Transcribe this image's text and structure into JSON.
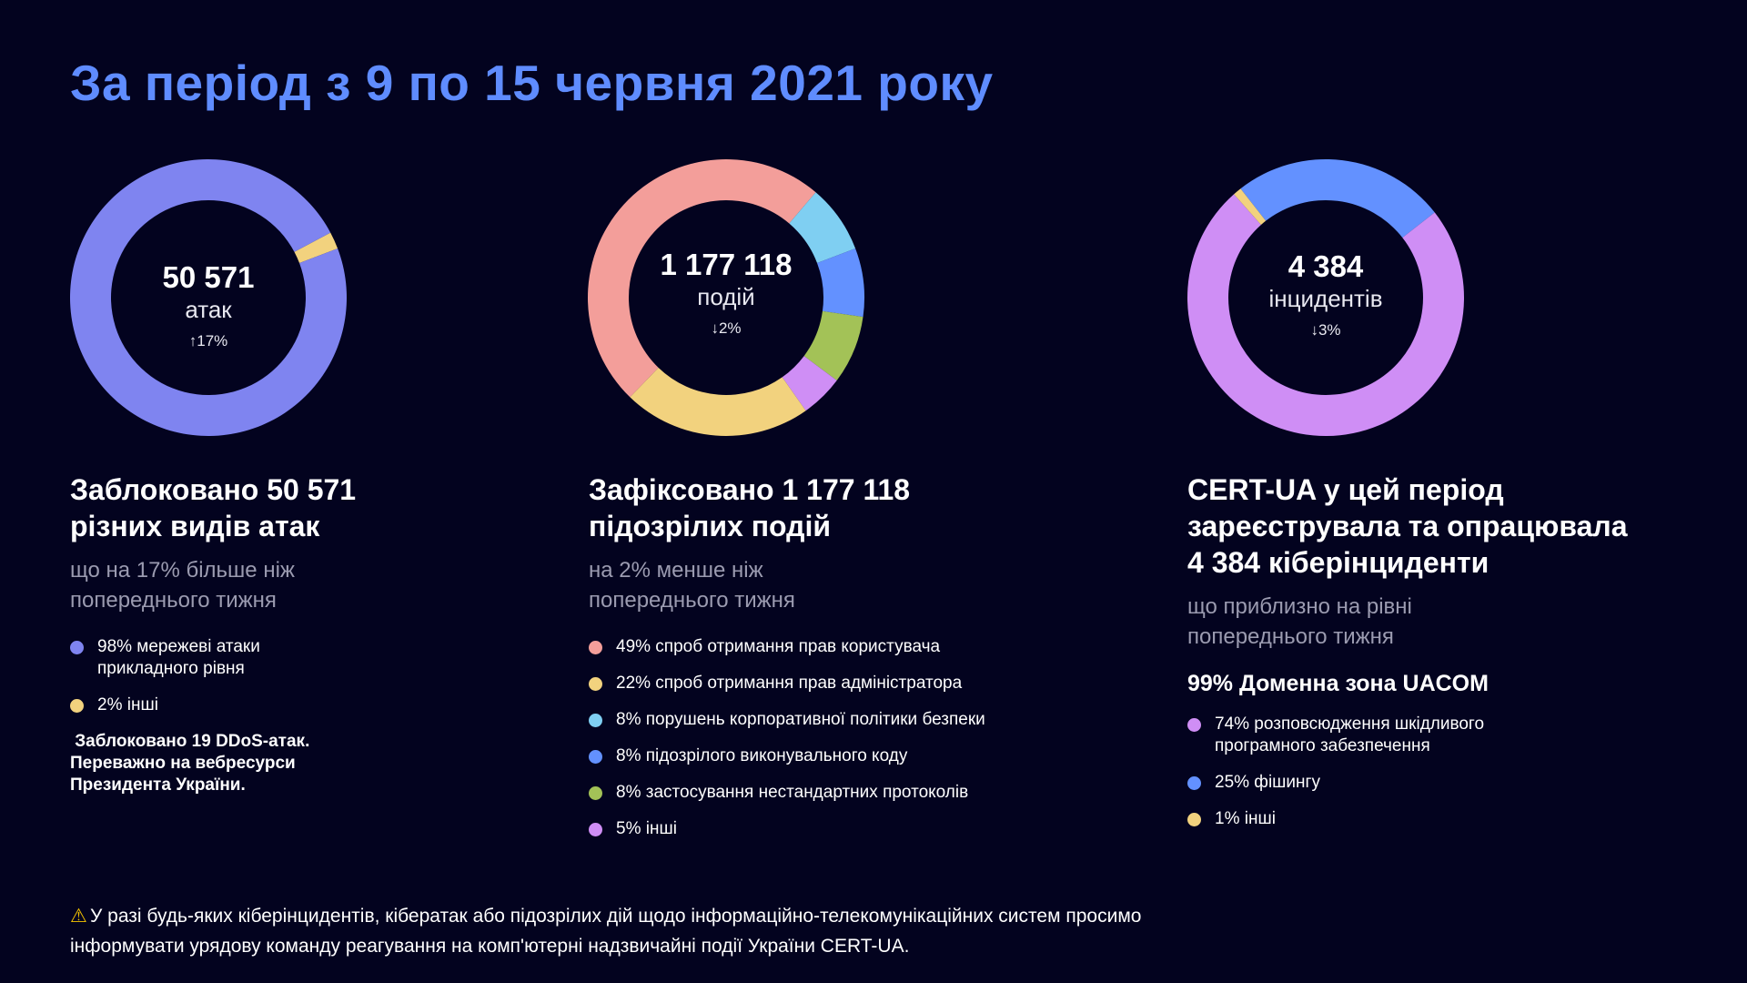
{
  "title": "За період з 9 по 15 червня 2021 року",
  "chart_data": [
    {
      "type": "pie",
      "variant": "donut",
      "center": {
        "value": "50 571",
        "unit": "атак",
        "change": "↑17%"
      },
      "categories": [
        "мережеві атаки прикладного рівня",
        "інші"
      ],
      "values": [
        98,
        2
      ],
      "colors": [
        "#7f84f0",
        "#f2d27e"
      ]
    },
    {
      "type": "pie",
      "variant": "donut",
      "center": {
        "value": "1 177 118",
        "unit": "подій",
        "change": "↓2%"
      },
      "categories": [
        "спроб отримання прав користувача",
        "спроб отримання прав адміністратора",
        "порушень корпоративної політики безпеки",
        "підозрілого виконувального коду",
        "застосування нестандартних протоколів",
        "інші"
      ],
      "values": [
        49,
        22,
        8,
        8,
        8,
        5
      ],
      "colors": [
        "#f39e9a",
        "#f2d27e",
        "#7fcff2",
        "#6391ff",
        "#a3c257",
        "#cf8ef5"
      ]
    },
    {
      "type": "pie",
      "variant": "donut",
      "center": {
        "value": "4 384",
        "unit": "інцидентів",
        "change": "↓3%"
      },
      "categories": [
        "розповсюдження шкідливого програмного забезпечення",
        "фішингу",
        "інші"
      ],
      "values": [
        74,
        25,
        1
      ],
      "colors": [
        "#cf8ef5",
        "#6391ff",
        "#f2d27e"
      ]
    }
  ],
  "columns": [
    {
      "heading": [
        "Заблоковано 50 571",
        "різних видів атак"
      ],
      "subtitle": [
        "що на 17% більше ніж",
        "попереднього тижня"
      ],
      "legend": [
        "98% мережеві атаки прикладного рівня",
        "2% інші"
      ],
      "note": [
        " Заблоковано 19 DDoS-атак.",
        "Переважно на вебресурси",
        "Президента України."
      ]
    },
    {
      "heading": [
        "Зафіксовано 1 177 118",
        "підозрілих подій"
      ],
      "subtitle": [
        "на 2% менше ніж",
        "попереднього тижня"
      ],
      "legend": [
        "49% спроб отримання прав користувача",
        "22% спроб отримання прав адміністратора",
        "8% порушень корпоративної політики безпеки",
        "8% підозрілого виконувального коду",
        "8% застосування нестандартних протоколів",
        "5% інші"
      ]
    },
    {
      "heading": [
        "CERT-UA у цей період",
        "зареєструвала та опрацювала",
        "4 384 кіберінциденти"
      ],
      "subtitle": [
        "що приблизно на рівні",
        "попереднього тижня"
      ],
      "domain_line": "99% Доменна зона UACOM",
      "legend": [
        "74% розповсюдження шкідливого програмного забезпечення",
        "25% фішингу",
        "1% інші"
      ]
    }
  ],
  "footer": {
    "icon": "warning-icon",
    "line1": "У разі будь-яких кіберінцидентів, кібератак або підозрілих дій щодо інформаційно-телекомунікаційних систем просимо",
    "line2": "інформувати урядову команду реагування на комп'ютерні надзвичайні події України CERT-UA."
  }
}
